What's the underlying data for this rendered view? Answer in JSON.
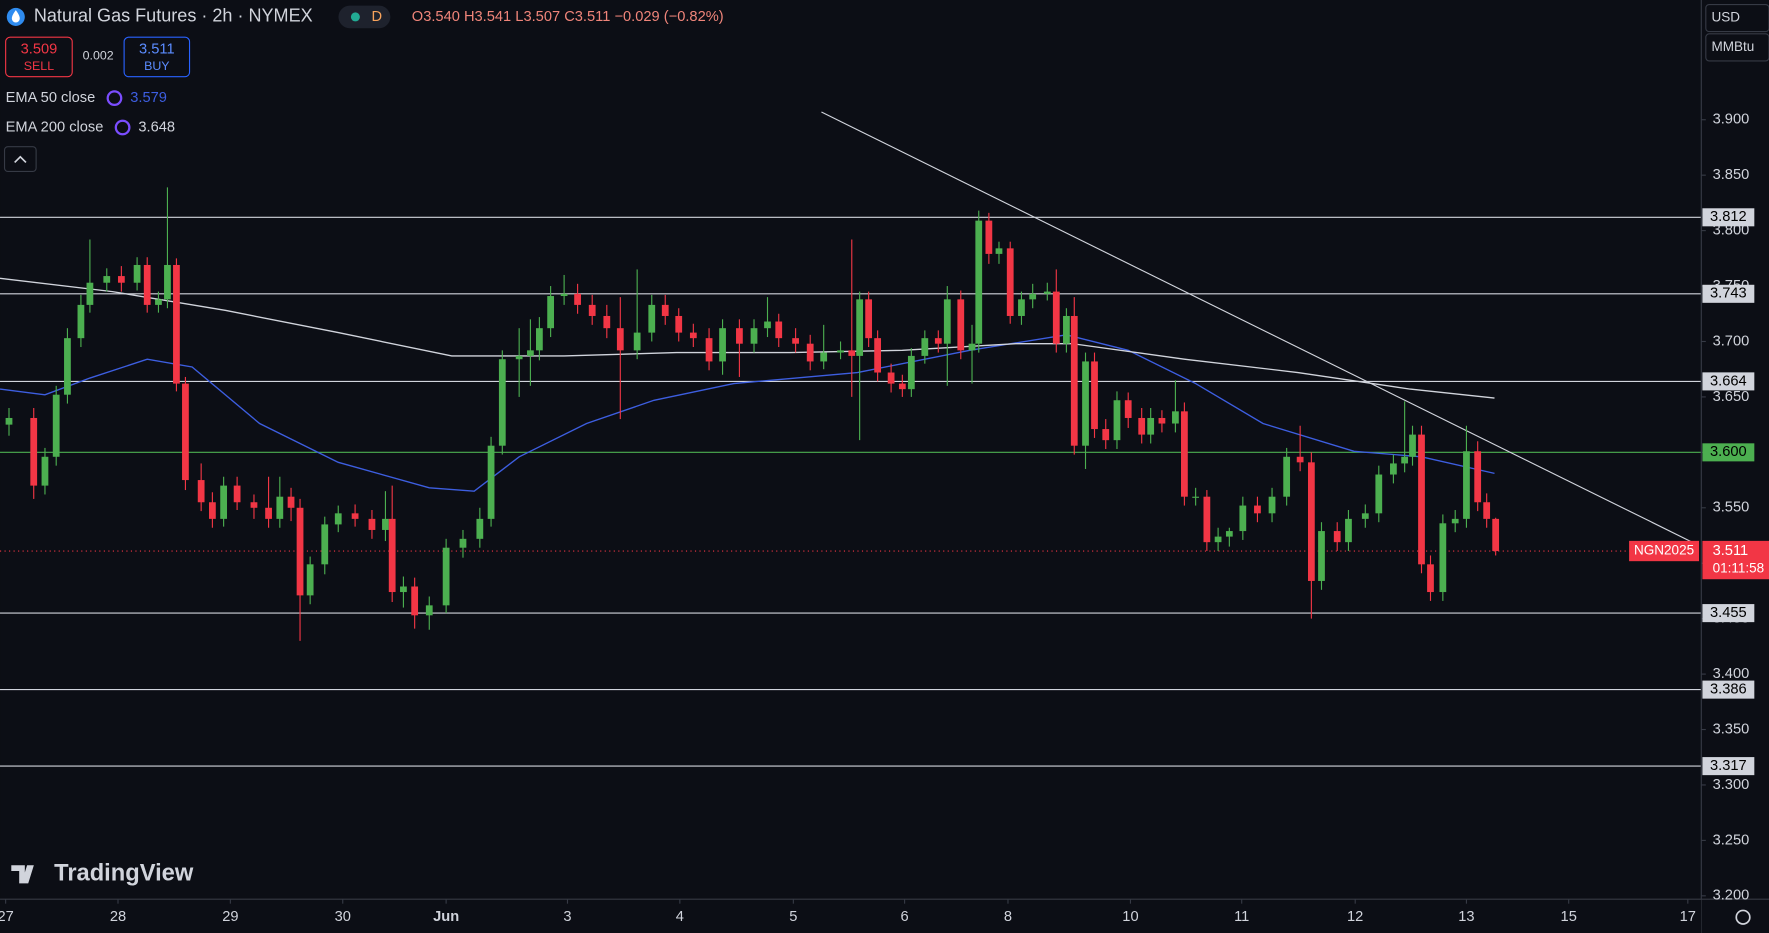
{
  "header": {
    "title": "Natural Gas Futures · 2h · NYMEX",
    "badge": "D",
    "open": "O3.540",
    "high": "H3.541",
    "low": "L3.507",
    "close": "C3.511",
    "change": "−0.029 (−0.82%)"
  },
  "sell": {
    "price": "3.509",
    "label": "SELL"
  },
  "spread": "0.002",
  "buy": {
    "price": "3.511",
    "label": "BUY"
  },
  "currency": "USD",
  "unit": "MMBtu",
  "logo": "TradingView",
  "chart_data": {
    "type": "candlestick",
    "x": [
      0.03,
      0.25,
      0.35,
      0.45,
      0.55,
      0.67,
      0.75,
      0.9,
      1.03,
      1.17,
      1.26,
      1.36,
      1.44,
      1.52,
      1.6,
      1.74,
      1.84,
      1.94,
      2.06,
      2.21,
      2.34,
      2.44,
      2.54,
      2.62,
      2.71,
      2.84,
      2.96,
      3.11,
      3.26,
      3.38,
      3.44,
      3.54,
      3.64,
      3.77,
      3.92,
      4.07,
      4.22,
      4.32,
      4.42,
      4.57,
      4.67,
      4.75,
      4.85,
      4.97,
      5.09,
      5.22,
      5.35,
      5.47,
      5.62,
      5.75,
      5.87,
      5.99,
      6.12,
      6.26,
      6.38,
      6.53,
      6.66,
      6.78,
      6.88,
      7.03,
      7.16,
      7.28,
      7.43,
      7.53,
      7.6,
      7.68,
      7.76,
      7.88,
      7.98,
      8.06,
      8.18,
      8.3,
      8.38,
      8.5,
      8.6,
      8.66,
      8.75,
      8.84,
      8.94,
      9.04,
      9.14,
      9.27,
      9.35,
      9.44,
      9.51,
      9.61,
      9.69,
      9.79,
      9.89,
      9.99,
      10.11,
      10.19,
      10.29,
      10.41,
      10.49,
      10.59,
      10.69,
      10.79,
      10.89,
      11.01,
      11.14,
      11.27,
      11.4,
      11.52,
      11.62,
      11.71,
      11.85,
      11.95,
      12.1,
      12.22,
      12.35,
      12.45,
      12.52,
      12.6,
      12.68,
      12.79,
      12.9,
      13.0,
      13.1,
      13.18,
      13.26
    ],
    "open": [
      3.625,
      3.631,
      3.57,
      3.596,
      3.652,
      3.703,
      3.733,
      3.753,
      3.759,
      3.753,
      3.769,
      3.733,
      3.738,
      3.769,
      3.662,
      3.575,
      3.555,
      3.54,
      3.57,
      3.555,
      3.55,
      3.54,
      3.56,
      3.55,
      3.471,
      3.499,
      3.535,
      3.545,
      3.54,
      3.53,
      3.54,
      3.474,
      3.479,
      3.453,
      3.462,
      3.514,
      3.522,
      3.54,
      3.606,
      3.684,
      3.687,
      3.692,
      3.712,
      3.741,
      3.743,
      3.733,
      3.723,
      3.712,
      3.692,
      3.708,
      3.733,
      3.723,
      3.708,
      3.703,
      3.682,
      3.712,
      3.698,
      3.712,
      3.718,
      3.703,
      3.698,
      3.682,
      3.69,
      3.692,
      3.687,
      3.738,
      3.703,
      3.672,
      3.662,
      3.657,
      3.687,
      3.703,
      3.698,
      3.738,
      3.692,
      3.698,
      3.809,
      3.779,
      3.784,
      3.723,
      3.738,
      3.743,
      3.745,
      3.698,
      3.723,
      3.606,
      3.682,
      3.621,
      3.611,
      3.647,
      3.631,
      3.616,
      3.631,
      3.626,
      3.637,
      3.56,
      3.56,
      3.519,
      3.524,
      3.529,
      3.552,
      3.545,
      3.56,
      3.596,
      3.591,
      3.484,
      3.529,
      3.519,
      3.54,
      3.545,
      3.58,
      3.59,
      3.596,
      3.616,
      3.499,
      3.474,
      3.536,
      3.54,
      3.601,
      3.555,
      3.54
    ],
    "high": [
      3.64,
      3.64,
      3.604,
      3.66,
      3.712,
      3.742,
      3.792,
      3.766,
      3.768,
      3.776,
      3.776,
      3.745,
      3.839,
      3.775,
      3.668,
      3.59,
      3.564,
      3.578,
      3.578,
      3.562,
      3.578,
      3.578,
      3.568,
      3.558,
      3.506,
      3.542,
      3.552,
      3.553,
      3.548,
      3.565,
      3.57,
      3.488,
      3.487,
      3.47,
      3.522,
      3.53,
      3.55,
      3.614,
      3.692,
      3.712,
      3.72,
      3.722,
      3.75,
      3.76,
      3.752,
      3.742,
      3.733,
      3.74,
      3.765,
      3.742,
      3.742,
      3.73,
      3.716,
      3.712,
      3.72,
      3.72,
      3.72,
      3.74,
      3.725,
      3.712,
      3.706,
      3.715,
      3.7,
      3.792,
      3.745,
      3.745,
      3.71,
      3.68,
      3.67,
      3.694,
      3.71,
      3.71,
      3.75,
      3.746,
      3.715,
      3.818,
      3.816,
      3.79,
      3.79,
      3.745,
      3.752,
      3.753,
      3.765,
      3.73,
      3.74,
      3.69,
      3.69,
      3.63,
      3.655,
      3.654,
      3.64,
      3.64,
      3.638,
      3.665,
      3.645,
      3.568,
      3.566,
      3.532,
      3.532,
      3.56,
      3.56,
      3.568,
      3.604,
      3.624,
      3.6,
      3.537,
      3.537,
      3.548,
      3.553,
      3.588,
      3.598,
      3.646,
      3.624,
      3.624,
      3.507,
      3.544,
      3.548,
      3.624,
      3.61,
      3.563,
      3.541
    ],
    "low": [
      3.615,
      3.558,
      3.562,
      3.588,
      3.644,
      3.695,
      3.726,
      3.745,
      3.745,
      3.746,
      3.726,
      3.726,
      3.73,
      3.655,
      3.566,
      3.547,
      3.532,
      3.533,
      3.548,
      3.54,
      3.532,
      3.532,
      3.538,
      3.43,
      3.463,
      3.49,
      3.528,
      3.533,
      3.522,
      3.52,
      3.465,
      3.46,
      3.441,
      3.44,
      3.455,
      3.505,
      3.514,
      3.533,
      3.598,
      3.65,
      3.66,
      3.683,
      3.704,
      3.733,
      3.725,
      3.715,
      3.703,
      3.63,
      3.684,
      3.7,
      3.715,
      3.7,
      3.695,
      3.674,
      3.67,
      3.668,
      3.69,
      3.704,
      3.695,
      3.69,
      3.674,
      3.675,
      3.684,
      3.65,
      3.611,
      3.695,
      3.664,
      3.654,
      3.65,
      3.65,
      3.68,
      3.69,
      3.66,
      3.684,
      3.662,
      3.69,
      3.77,
      3.77,
      3.716,
      3.715,
      3.73,
      3.737,
      3.69,
      3.69,
      3.598,
      3.585,
      3.613,
      3.603,
      3.603,
      3.622,
      3.608,
      3.608,
      3.618,
      3.618,
      3.552,
      3.552,
      3.511,
      3.511,
      3.515,
      3.521,
      3.537,
      3.537,
      3.552,
      3.583,
      3.45,
      3.476,
      3.511,
      3.511,
      3.532,
      3.537,
      3.572,
      3.582,
      3.588,
      3.491,
      3.466,
      3.466,
      3.528,
      3.532,
      3.547,
      3.532,
      3.507
    ],
    "close": [
      3.631,
      3.57,
      3.596,
      3.652,
      3.703,
      3.733,
      3.753,
      3.759,
      3.753,
      3.769,
      3.733,
      3.738,
      3.769,
      3.662,
      3.575,
      3.555,
      3.54,
      3.57,
      3.555,
      3.55,
      3.54,
      3.56,
      3.55,
      3.471,
      3.499,
      3.535,
      3.545,
      3.54,
      3.53,
      3.54,
      3.474,
      3.479,
      3.453,
      3.462,
      3.514,
      3.522,
      3.54,
      3.606,
      3.684,
      3.687,
      3.692,
      3.712,
      3.741,
      3.743,
      3.733,
      3.723,
      3.712,
      3.692,
      3.708,
      3.733,
      3.723,
      3.708,
      3.703,
      3.682,
      3.712,
      3.698,
      3.712,
      3.718,
      3.703,
      3.698,
      3.682,
      3.69,
      3.692,
      3.687,
      3.738,
      3.703,
      3.672,
      3.662,
      3.657,
      3.687,
      3.703,
      3.698,
      3.738,
      3.692,
      3.698,
      3.809,
      3.779,
      3.784,
      3.723,
      3.738,
      3.743,
      3.745,
      3.698,
      3.723,
      3.606,
      3.682,
      3.621,
      3.611,
      3.647,
      3.631,
      3.616,
      3.631,
      3.626,
      3.637,
      3.56,
      3.56,
      3.519,
      3.524,
      3.529,
      3.552,
      3.545,
      3.56,
      3.596,
      3.591,
      3.484,
      3.529,
      3.519,
      3.54,
      3.545,
      3.58,
      3.59,
      3.596,
      3.616,
      3.499,
      3.474,
      3.536,
      3.54,
      3.601,
      3.555,
      3.54,
      3.511
    ],
    "up_color": "#4caf50",
    "down_color": "#f23645",
    "series": [
      {
        "name": "EMA 50 close",
        "color": "#3d5ee0",
        "last": 3.579,
        "x": [
          -0.05,
          0.35,
          0.75,
          1.26,
          1.66,
          2.26,
          2.96,
          3.77,
          4.17,
          4.57,
          5.17,
          5.77,
          6.48,
          7.58,
          8.58,
          9.44,
          9.99,
          10.59,
          11.19,
          12.0,
          12.6,
          13.25
        ],
        "values": [
          3.657,
          3.652,
          3.667,
          3.684,
          3.677,
          3.626,
          3.591,
          3.568,
          3.565,
          3.596,
          3.626,
          3.647,
          3.662,
          3.672,
          3.692,
          3.706,
          3.692,
          3.662,
          3.626,
          3.601,
          3.596,
          3.581
        ]
      },
      {
        "name": "EMA 200 close",
        "color": "#d1d4dc",
        "last": 3.648,
        "x": [
          -0.05,
          0.95,
          1.96,
          2.96,
          3.97,
          4.97,
          5.97,
          6.98,
          7.98,
          8.99,
          9.49,
          10.49,
          11.5,
          12.5,
          13.25
        ],
        "values": [
          3.757,
          3.745,
          3.728,
          3.708,
          3.687,
          3.687,
          3.69,
          3.69,
          3.692,
          3.698,
          3.698,
          3.684,
          3.672,
          3.657,
          3.649
        ]
      }
    ],
    "trendline": {
      "x": [
        7.26,
        15.01
      ],
      "y": [
        3.907,
        3.519
      ],
      "color": "#d1d4dc"
    },
    "levels": [
      3.812,
      3.743,
      3.664,
      {
        "value": 3.6,
        "label": "3.600",
        "color": "#4caf50"
      },
      3.455,
      3.386,
      3.317
    ],
    "level_color": "#d1d4dc",
    "last_price": {
      "value": 3.511,
      "symbol": "NGN2025",
      "countdown": "01:11:58",
      "color": "#f23645"
    },
    "xlim": [
      -0.05,
      15.09
    ],
    "xticks": [
      {
        "value": 0,
        "label": "27"
      },
      {
        "value": 1.0,
        "label": "28"
      },
      {
        "value": 2.0,
        "label": "29"
      },
      {
        "value": 3.0,
        "label": "30"
      },
      {
        "value": 3.92,
        "label": "Jun"
      },
      {
        "value": 5.0,
        "label": "3"
      },
      {
        "value": 6.0,
        "label": "4"
      },
      {
        "value": 7.01,
        "label": "5"
      },
      {
        "value": 8.0,
        "label": "6"
      },
      {
        "value": 8.92,
        "label": "8"
      },
      {
        "value": 10.01,
        "label": "10"
      },
      {
        "value": 11.0,
        "label": "11"
      },
      {
        "value": 12.01,
        "label": "12"
      },
      {
        "value": 13.0,
        "label": "13"
      },
      {
        "value": 13.91,
        "label": "15"
      },
      {
        "value": 14.97,
        "label": "17"
      }
    ],
    "ylim": [
      3.197,
      4.008
    ],
    "yticks": [
      {
        "value": 3.2,
        "label": "3.200"
      },
      {
        "value": 3.25,
        "label": "3.250"
      },
      {
        "value": 3.3,
        "label": "3.300"
      },
      {
        "value": 3.35,
        "label": "3.350"
      },
      {
        "value": 3.4,
        "label": "3.400"
      },
      {
        "value": 3.45,
        "label": "3.450"
      },
      {
        "value": 3.5,
        "label": "3.500"
      },
      {
        "value": 3.55,
        "label": "3.550"
      },
      {
        "value": 3.6,
        "label": "3.600"
      },
      {
        "value": 3.65,
        "label": "3.650"
      },
      {
        "value": 3.7,
        "label": "3.700"
      },
      {
        "value": 3.75,
        "label": "3.750"
      },
      {
        "value": 3.8,
        "label": "3.800"
      },
      {
        "value": 3.85,
        "label": "3.850"
      },
      {
        "value": 3.9,
        "label": "3.900"
      }
    ],
    "grid": false
  }
}
